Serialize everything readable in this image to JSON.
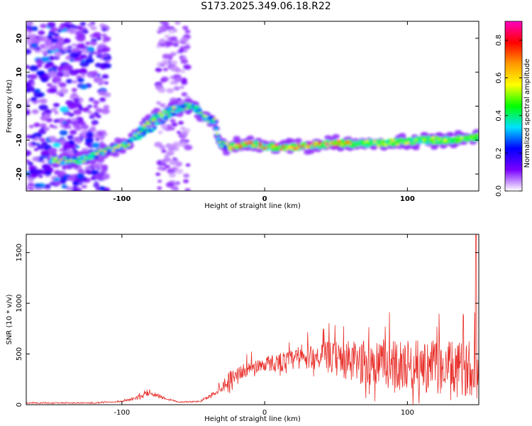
{
  "title": "S173.2025.349.06.18.R22",
  "chart_data": [
    {
      "type": "heatmap",
      "xlabel": "Height of straight line (km)",
      "ylabel": "Frequency (Hz)",
      "xlim": [
        -167,
        150
      ],
      "ylim": [
        -25,
        25
      ],
      "x_ticks": [
        -100,
        0,
        100
      ],
      "x_tick_labels": [
        "-100",
        "0",
        "100"
      ],
      "y_ticks": [
        -20,
        -10,
        0,
        10,
        20
      ],
      "y_tick_labels": [
        "-20",
        "-10",
        "0",
        "10",
        "20"
      ],
      "colorbar": {
        "label": "Normalized spectral amplitude",
        "range": [
          0,
          0.9
        ],
        "ticks": [
          0,
          0.2,
          0.4,
          0.6,
          0.8
        ],
        "tick_labels": [
          "0.0",
          "0.2",
          "0.4",
          "0.6",
          "0.8"
        ],
        "colors": [
          "#ffffff",
          "#7a00ff",
          "#0000ff",
          "#00e0ff",
          "#00ff00",
          "#ffff00",
          "#ff9900",
          "#ff0000",
          "#ff00c0"
        ]
      },
      "ridge": {
        "x": [
          -150,
          -130,
          -110,
          -95,
          -85,
          -75,
          -65,
          -50,
          -40,
          -35,
          -32,
          -25,
          -10,
          0,
          20,
          50,
          80,
          110,
          130,
          150
        ],
        "y": [
          -16,
          -16,
          -13,
          -11,
          -6,
          -3,
          -1,
          0,
          -4,
          -4,
          -11,
          -12,
          -11,
          -12,
          -12,
          -11,
          -11,
          -10,
          -10,
          -9
        ]
      }
    },
    {
      "type": "line",
      "xlabel": "Height of straight line (km)",
      "ylabel": "SNR (10 * v/v)",
      "xlim": [
        -167,
        150
      ],
      "ylim": [
        0,
        1680
      ],
      "x_ticks": [
        -100,
        0,
        100
      ],
      "x_tick_labels": [
        "-100",
        "0",
        "100"
      ],
      "y_ticks": [
        0,
        500,
        1000,
        1500
      ],
      "y_tick_labels": [
        "0",
        "500",
        "1000",
        "1500"
      ],
      "series": [
        {
          "name": "SNR",
          "color": "#e8302b",
          "envelope_x": [
            -167,
            -120,
            -100,
            -90,
            -80,
            -70,
            -60,
            -45,
            -38,
            -32,
            -25,
            -20,
            -10,
            0,
            10,
            20,
            30,
            40,
            50,
            60,
            70,
            80,
            90,
            100,
            110,
            120,
            130,
            140,
            146,
            148,
            150
          ],
          "envelope_base": [
            15,
            15,
            30,
            60,
            110,
            60,
            25,
            30,
            80,
            140,
            220,
            280,
            340,
            380,
            390,
            410,
            430,
            440,
            400,
            360,
            340,
            330,
            320,
            310,
            300,
            290,
            280,
            270,
            260,
            300,
            300
          ],
          "envelope_amp": [
            15,
            15,
            20,
            50,
            80,
            40,
            15,
            20,
            60,
            120,
            250,
            200,
            200,
            220,
            260,
            300,
            320,
            380,
            500,
            600,
            650,
            700,
            700,
            720,
            740,
            760,
            760,
            740,
            700,
            1400,
            300
          ]
        }
      ]
    }
  ]
}
